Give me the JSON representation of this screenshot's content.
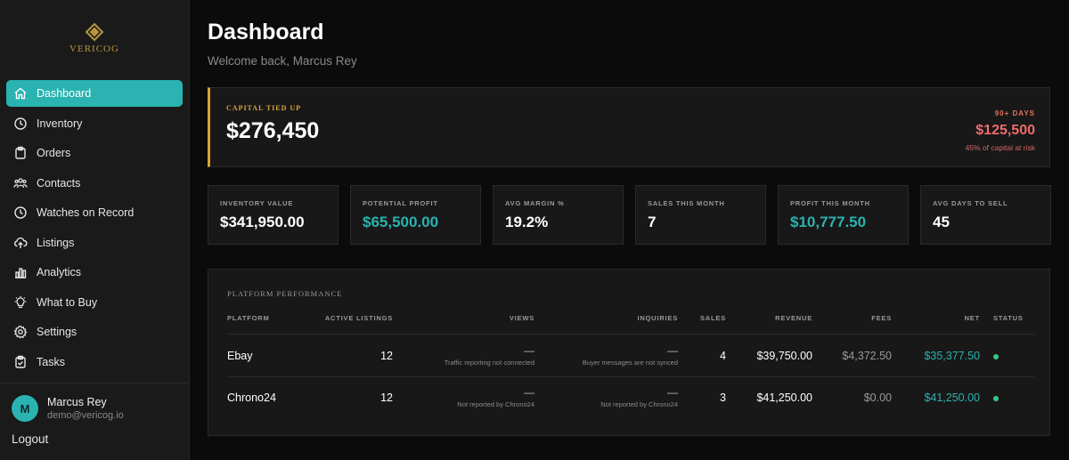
{
  "brand": {
    "name": "VERICOG",
    "color": "#b8963e"
  },
  "colors": {
    "accent": "#2ab3b0",
    "warning": "#d9a23a",
    "danger": "#ef6b6b",
    "success": "#36c98a"
  },
  "sidebar": {
    "items": [
      {
        "label": "Dashboard",
        "icon": "home-icon",
        "active": true
      },
      {
        "label": "Inventory",
        "icon": "clock-icon"
      },
      {
        "label": "Orders",
        "icon": "clipboard-icon"
      },
      {
        "label": "Contacts",
        "icon": "users-icon"
      },
      {
        "label": "Watches on Record",
        "icon": "clock-icon"
      },
      {
        "label": "Listings",
        "icon": "cloud-upload-icon"
      },
      {
        "label": "Analytics",
        "icon": "bar-chart-icon"
      },
      {
        "label": "What to Buy",
        "icon": "lightbulb-icon"
      },
      {
        "label": "Settings",
        "icon": "gear-icon"
      },
      {
        "label": "Tasks",
        "icon": "clipboard-check-icon"
      }
    ]
  },
  "user": {
    "initial": "M",
    "name": "Marcus Rey",
    "email": "demo@vericog.io",
    "logout_label": "Logout"
  },
  "header": {
    "title": "Dashboard",
    "subtitle": "Welcome back, Marcus Rey"
  },
  "capital": {
    "label": "CAPITAL TIED UP",
    "value": "$276,450",
    "risk_label": "90+ DAYS",
    "risk_value": "$125,500",
    "risk_note": "45% of capital at risk"
  },
  "stats": [
    {
      "label": "INVENTORY VALUE",
      "value": "$341,950.00"
    },
    {
      "label": "POTENTIAL PROFIT",
      "value": "$65,500.00",
      "accent": true
    },
    {
      "label": "AVG MARGIN %",
      "value": "19.2%"
    },
    {
      "label": "SALES THIS MONTH",
      "value": "7"
    },
    {
      "label": "PROFIT THIS MONTH",
      "value": "$10,777.50",
      "accent": true
    },
    {
      "label": "AVG DAYS TO SELL",
      "value": "45"
    }
  ],
  "platforms": {
    "title": "PLATFORM PERFORMANCE",
    "headers": {
      "platform": "PLATFORM",
      "active": "ACTIVE LISTINGS",
      "views": "VIEWS",
      "inquiries": "INQUIRIES",
      "sales": "SALES",
      "revenue": "REVENUE",
      "fees": "FEES",
      "net": "NET",
      "status": "STATUS"
    },
    "rows": [
      {
        "platform": "Ebay",
        "active": "12",
        "views": "—",
        "views_note": "Traffic reporting not connected",
        "inquiries": "—",
        "inquiries_note": "Buyer messages are not synced",
        "sales": "4",
        "revenue": "$39,750.00",
        "fees": "$4,372.50",
        "net": "$35,377.50",
        "status": "active"
      },
      {
        "platform": "Chrono24",
        "active": "12",
        "views": "—",
        "views_note": "Not reported by Chrono24",
        "inquiries": "—",
        "inquiries_note": "Not reported by Chrono24",
        "sales": "3",
        "revenue": "$41,250.00",
        "fees": "$0.00",
        "net": "$41,250.00",
        "status": "active"
      }
    ]
  }
}
